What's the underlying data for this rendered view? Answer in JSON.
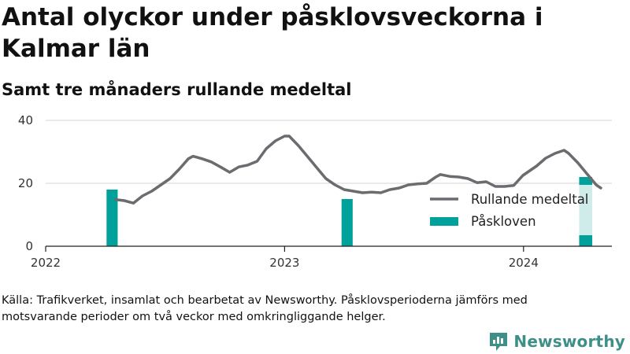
{
  "title": "Antal olyckor under påsklovsveckorna i Kalmar län",
  "subtitle": "Samt tre månaders rullande medeltal",
  "source": "Källa: Trafikverket, insamlat och bearbetat av Newsworthy. Påsklovsperioderna jämförs med motsvarande perioder om två veckor med omkringliggande helger.",
  "brand": {
    "name": "Newsworthy",
    "icon": "newsworthy-logo-icon"
  },
  "colors": {
    "line": "#6b6b70",
    "bars": "#00a19a",
    "comparison_bar": "#cfeceb",
    "grid": "#d6d6d6"
  },
  "chart_data": {
    "type": "bar+line",
    "x_axis": {
      "type": "date",
      "ticks": [
        "2022",
        "2023",
        "2024"
      ],
      "range": [
        "2022-01-01",
        "2024-05-15"
      ]
    },
    "y_axis": {
      "ticks": [
        0,
        20,
        40
      ],
      "range": [
        0,
        42
      ],
      "grid": true
    },
    "legend": {
      "placement": "right",
      "entries": [
        "Rullande medeltal",
        "Påskloven"
      ]
    },
    "series": [
      {
        "name": "Rullande medeltal",
        "kind": "line",
        "points": [
          [
            "2022-04-18",
            14.8
          ],
          [
            "2022-05-01",
            14.5
          ],
          [
            "2022-05-15",
            13.7
          ],
          [
            "2022-05-29",
            16.0
          ],
          [
            "2022-06-12",
            17.5
          ],
          [
            "2022-06-26",
            19.5
          ],
          [
            "2022-07-10",
            21.5
          ],
          [
            "2022-07-24",
            24.5
          ],
          [
            "2022-08-07",
            27.8
          ],
          [
            "2022-08-14",
            28.6
          ],
          [
            "2022-08-28",
            27.8
          ],
          [
            "2022-09-11",
            26.8
          ],
          [
            "2022-09-25",
            25.2
          ],
          [
            "2022-10-09",
            23.5
          ],
          [
            "2022-10-23",
            25.2
          ],
          [
            "2022-11-06",
            25.8
          ],
          [
            "2022-11-20",
            27.0
          ],
          [
            "2022-12-04",
            31.0
          ],
          [
            "2022-12-18",
            33.5
          ],
          [
            "2023-01-01",
            35.0
          ],
          [
            "2023-01-08",
            35.0
          ],
          [
            "2023-01-22",
            32.0
          ],
          [
            "2023-02-05",
            28.5
          ],
          [
            "2023-02-19",
            25.0
          ],
          [
            "2023-03-05",
            21.5
          ],
          [
            "2023-03-19",
            19.5
          ],
          [
            "2023-04-02",
            18.0
          ],
          [
            "2023-04-16",
            17.5
          ],
          [
            "2023-04-30",
            17.0
          ],
          [
            "2023-05-14",
            17.2
          ],
          [
            "2023-05-28",
            17.0
          ],
          [
            "2023-06-11",
            18.0
          ],
          [
            "2023-06-25",
            18.5
          ],
          [
            "2023-07-09",
            19.5
          ],
          [
            "2023-07-23",
            19.8
          ],
          [
            "2023-08-06",
            20.0
          ],
          [
            "2023-08-20",
            22.0
          ],
          [
            "2023-08-27",
            22.8
          ],
          [
            "2023-09-10",
            22.2
          ],
          [
            "2023-09-24",
            22.0
          ],
          [
            "2023-10-08",
            21.5
          ],
          [
            "2023-10-22",
            20.2
          ],
          [
            "2023-11-05",
            20.5
          ],
          [
            "2023-11-19",
            19.0
          ],
          [
            "2023-12-03",
            19.0
          ],
          [
            "2023-12-17",
            19.3
          ],
          [
            "2023-12-31",
            22.5
          ],
          [
            "2024-01-07",
            23.5
          ],
          [
            "2024-01-21",
            25.5
          ],
          [
            "2024-02-04",
            28.0
          ],
          [
            "2024-02-18",
            29.5
          ],
          [
            "2024-03-03",
            30.5
          ],
          [
            "2024-03-10",
            29.5
          ],
          [
            "2024-03-24",
            26.5
          ],
          [
            "2024-04-07",
            23.0
          ],
          [
            "2024-04-21",
            19.5
          ],
          [
            "2024-04-28",
            18.5
          ]
        ]
      },
      {
        "name": "Påskloven",
        "kind": "bar",
        "points": [
          {
            "start": "2022-04-04",
            "end": "2022-04-21",
            "value": 18
          },
          {
            "start": "2023-03-29",
            "end": "2023-04-15",
            "value": 15
          },
          {
            "start": "2024-03-26",
            "end": "2024-04-15",
            "value": 22,
            "comparison_segment": [
              3.5,
              19.5
            ]
          }
        ]
      }
    ]
  }
}
